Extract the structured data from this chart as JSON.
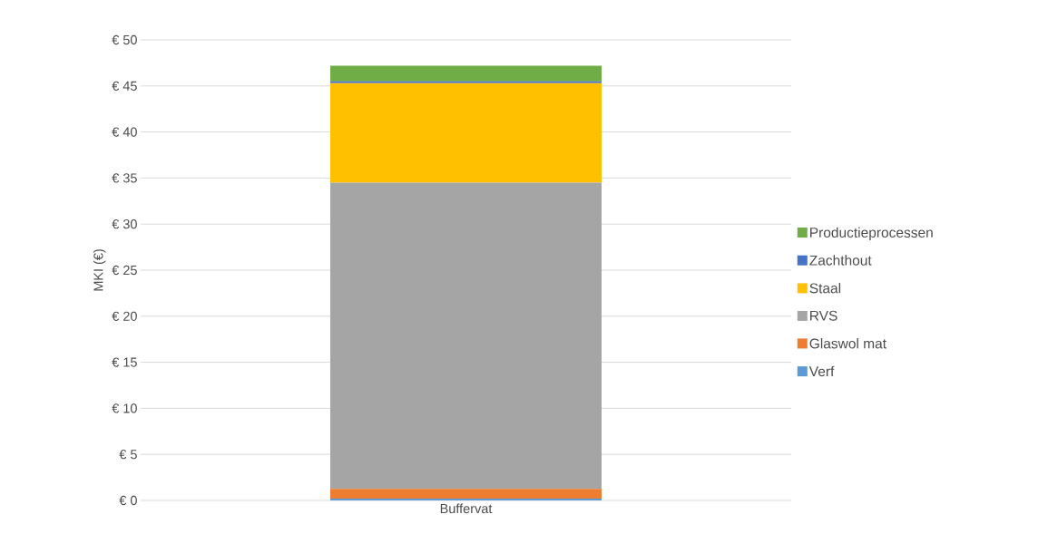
{
  "chart_data": {
    "type": "bar",
    "stacked": true,
    "ylabel": "MKI (€)",
    "categories": [
      "Buffervat"
    ],
    "series": [
      {
        "name": "Verf",
        "color": "#5b9bd5",
        "values": [
          0.2
        ]
      },
      {
        "name": "Glaswol mat",
        "color": "#ed7d31",
        "values": [
          1.05
        ]
      },
      {
        "name": "RVS",
        "color": "#a5a5a5",
        "values": [
          33.25
        ]
      },
      {
        "name": "Staal",
        "color": "#ffc000",
        "values": [
          10.8
        ]
      },
      {
        "name": "Zachthout",
        "color": "#4472c4",
        "values": [
          0.2
        ]
      },
      {
        "name": "Productieprocessen",
        "color": "#70ad47",
        "values": [
          1.7
        ]
      }
    ],
    "ylim": [
      0,
      50
    ],
    "yticks": [
      {
        "value": 0,
        "label": "€ 0"
      },
      {
        "value": 5,
        "label": "€ 5"
      },
      {
        "value": 10,
        "label": "€ 10"
      },
      {
        "value": 15,
        "label": "€ 15"
      },
      {
        "value": 20,
        "label": "€ 20"
      },
      {
        "value": 25,
        "label": "€ 25"
      },
      {
        "value": 30,
        "label": "€ 30"
      },
      {
        "value": 35,
        "label": "€ 35"
      },
      {
        "value": 40,
        "label": "€ 40"
      },
      {
        "value": 45,
        "label": "€ 45"
      },
      {
        "value": 50,
        "label": "€ 50"
      }
    ],
    "grid": "y",
    "legend": "right"
  }
}
